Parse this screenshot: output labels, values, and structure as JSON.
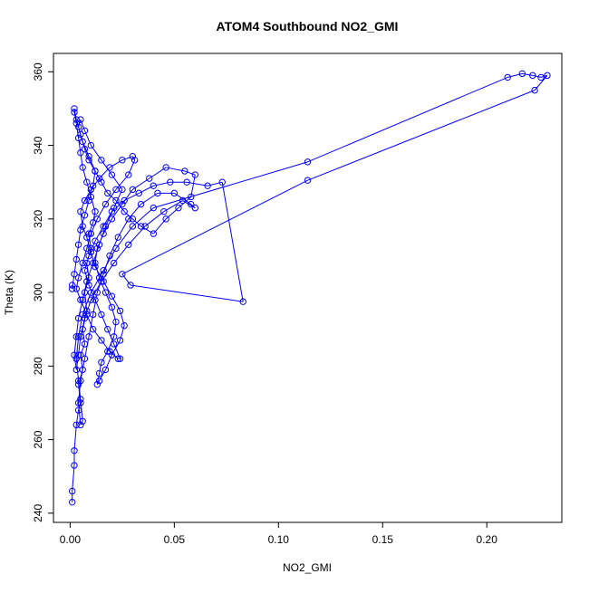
{
  "chart_data": {
    "type": "line",
    "title": "ATOM4 Southbound NO2_GMI",
    "xlabel": "NO2_GMI",
    "ylabel": "Theta (K)",
    "xlim": [
      -0.008,
      0.236
    ],
    "ylim": [
      237.5,
      365
    ],
    "x_ticks": [
      0.0,
      0.05,
      0.1,
      0.15,
      0.2
    ],
    "x_tick_labels": [
      "0.00",
      "0.05",
      "0.10",
      "0.15",
      "0.20"
    ],
    "y_ticks": [
      240,
      260,
      280,
      300,
      320,
      340,
      360
    ],
    "y_tick_labels": [
      "240",
      "260",
      "280",
      "300",
      "320",
      "340",
      "360"
    ],
    "grid": false,
    "style": {
      "line_color": "#0000ff",
      "marker": "open-circle",
      "marker_color": "#0000ff",
      "axis_color": "#000000"
    },
    "series": [
      {
        "points": [
          [
            0.001,
            243
          ],
          [
            0.001,
            246
          ],
          [
            0.002,
            253
          ],
          [
            0.002,
            257
          ],
          [
            0.003,
            264
          ],
          [
            0.004,
            268
          ],
          [
            0.005,
            270
          ],
          [
            0.004,
            275
          ],
          [
            0.006,
            279
          ],
          [
            0.005,
            283
          ],
          [
            0.007,
            286
          ],
          [
            0.006,
            290
          ],
          [
            0.008,
            295
          ],
          [
            0.007,
            300
          ],
          [
            0.009,
            304
          ],
          [
            0.008,
            308
          ],
          [
            0.01,
            312
          ],
          [
            0.009,
            316
          ],
          [
            0.011,
            319
          ],
          [
            0.012,
            322
          ],
          [
            0.01,
            326
          ],
          [
            0.008,
            330
          ],
          [
            0.006,
            334
          ],
          [
            0.005,
            338
          ],
          [
            0.004,
            342
          ],
          [
            0.003,
            346
          ],
          [
            0.002,
            349
          ],
          [
            0.002,
            350
          ],
          [
            0.003,
            347
          ],
          [
            0.005,
            343
          ],
          [
            0.007,
            339
          ],
          [
            0.009,
            336
          ],
          [
            0.012,
            333
          ],
          [
            0.015,
            330
          ],
          [
            0.018,
            327
          ],
          [
            0.022,
            325
          ],
          [
            0.026,
            322
          ],
          [
            0.03,
            320
          ],
          [
            0.034,
            318
          ],
          [
            0.04,
            316
          ],
          [
            0.046,
            320
          ],
          [
            0.052,
            323
          ],
          [
            0.058,
            326
          ],
          [
            0.06,
            332
          ],
          [
            0.055,
            333
          ],
          [
            0.046,
            334
          ],
          [
            0.038,
            331
          ],
          [
            0.03,
            328
          ],
          [
            0.025,
            324
          ],
          [
            0.02,
            320
          ],
          [
            0.016,
            316
          ],
          [
            0.013,
            312
          ],
          [
            0.012,
            308
          ],
          [
            0.014,
            304
          ],
          [
            0.017,
            300
          ],
          [
            0.02,
            296
          ],
          [
            0.022,
            292
          ],
          [
            0.021,
            288
          ],
          [
            0.018,
            284
          ],
          [
            0.015,
            281
          ],
          [
            0.014,
            278
          ],
          [
            0.013,
            275
          ],
          [
            0.014,
            276
          ],
          [
            0.017,
            279
          ],
          [
            0.02,
            283
          ],
          [
            0.024,
            287
          ],
          [
            0.026,
            291
          ],
          [
            0.024,
            295
          ],
          [
            0.02,
            299
          ],
          [
            0.016,
            303
          ],
          [
            0.012,
            307
          ],
          [
            0.01,
            311
          ],
          [
            0.008,
            315
          ],
          [
            0.006,
            318
          ],
          [
            0.005,
            322
          ],
          [
            0.007,
            325
          ],
          [
            0.01,
            328
          ],
          [
            0.014,
            331
          ],
          [
            0.019,
            334
          ],
          [
            0.025,
            336
          ],
          [
            0.03,
            337
          ],
          [
            0.031,
            336
          ],
          [
            0.028,
            332
          ],
          [
            0.022,
            328
          ],
          [
            0.017,
            324
          ],
          [
            0.013,
            320
          ],
          [
            0.01,
            316
          ],
          [
            0.008,
            312
          ],
          [
            0.006,
            308
          ],
          [
            0.004,
            304
          ],
          [
            0.003,
            301
          ],
          [
            0.005,
            298
          ],
          [
            0.008,
            294
          ],
          [
            0.011,
            290
          ],
          [
            0.015,
            287
          ],
          [
            0.019,
            284
          ],
          [
            0.023,
            282
          ],
          [
            0.024,
            282
          ],
          [
            0.021,
            286
          ],
          [
            0.018,
            290
          ],
          [
            0.015,
            294
          ],
          [
            0.012,
            298
          ],
          [
            0.009,
            302
          ],
          [
            0.007,
            306
          ],
          [
            0.009,
            310
          ],
          [
            0.012,
            314
          ],
          [
            0.016,
            318
          ],
          [
            0.02,
            322
          ],
          [
            0.026,
            325
          ],
          [
            0.033,
            327
          ],
          [
            0.04,
            329
          ],
          [
            0.048,
            330
          ],
          [
            0.056,
            330
          ],
          [
            0.066,
            329
          ],
          [
            0.073,
            330
          ],
          [
            0.083,
            297.5
          ],
          [
            0.029,
            302
          ],
          [
            0.025,
            305
          ],
          [
            0.114,
            330.5
          ],
          [
            0.223,
            355
          ],
          [
            0.229,
            359
          ],
          [
            0.226,
            358.5
          ],
          [
            0.222,
            359
          ],
          [
            0.217,
            359.5
          ],
          [
            0.21,
            358.5
          ],
          [
            0.114,
            335.5
          ],
          [
            0.04,
            323
          ],
          [
            0.03,
            318
          ],
          [
            0.022,
            312
          ],
          [
            0.016,
            306
          ],
          [
            0.01,
            300
          ],
          [
            0.006,
            294
          ],
          [
            0.004,
            288
          ],
          [
            0.003,
            282
          ],
          [
            0.004,
            276
          ],
          [
            0.005,
            271
          ],
          [
            0.006,
            265
          ],
          [
            0.005,
            264
          ],
          [
            0.004,
            270
          ],
          [
            0.005,
            276
          ],
          [
            0.007,
            282
          ],
          [
            0.009,
            288
          ],
          [
            0.011,
            294
          ],
          [
            0.013,
            300
          ],
          [
            0.016,
            305
          ],
          [
            0.019,
            310
          ],
          [
            0.023,
            315
          ],
          [
            0.028,
            320
          ],
          [
            0.034,
            324
          ],
          [
            0.042,
            327
          ],
          [
            0.05,
            327
          ],
          [
            0.058,
            324
          ],
          [
            0.06,
            323
          ],
          [
            0.054,
            325
          ],
          [
            0.045,
            322
          ],
          [
            0.036,
            318
          ],
          [
            0.028,
            313
          ],
          [
            0.021,
            308
          ],
          [
            0.015,
            303
          ],
          [
            0.01,
            298
          ],
          [
            0.007,
            293
          ],
          [
            0.005,
            288
          ],
          [
            0.004,
            283
          ],
          [
            0.003,
            279
          ],
          [
            0.002,
            283
          ],
          [
            0.003,
            288
          ],
          [
            0.004,
            293
          ],
          [
            0.006,
            298
          ],
          [
            0.008,
            303
          ],
          [
            0.011,
            308
          ],
          [
            0.014,
            313
          ],
          [
            0.017,
            318
          ],
          [
            0.021,
            323
          ],
          [
            0.025,
            328
          ],
          [
            0.02,
            332
          ],
          [
            0.015,
            336
          ],
          [
            0.01,
            340
          ],
          [
            0.007,
            344
          ],
          [
            0.005,
            347
          ],
          [
            0.004,
            345
          ],
          [
            0.006,
            341
          ],
          [
            0.009,
            337
          ],
          [
            0.012,
            333
          ],
          [
            0.011,
            329
          ],
          [
            0.009,
            325
          ],
          [
            0.007,
            321
          ],
          [
            0.005,
            317
          ],
          [
            0.004,
            313
          ],
          [
            0.003,
            309
          ],
          [
            0.002,
            305
          ],
          [
            0.001,
            301
          ],
          [
            0.001,
            302
          ]
        ]
      }
    ]
  }
}
